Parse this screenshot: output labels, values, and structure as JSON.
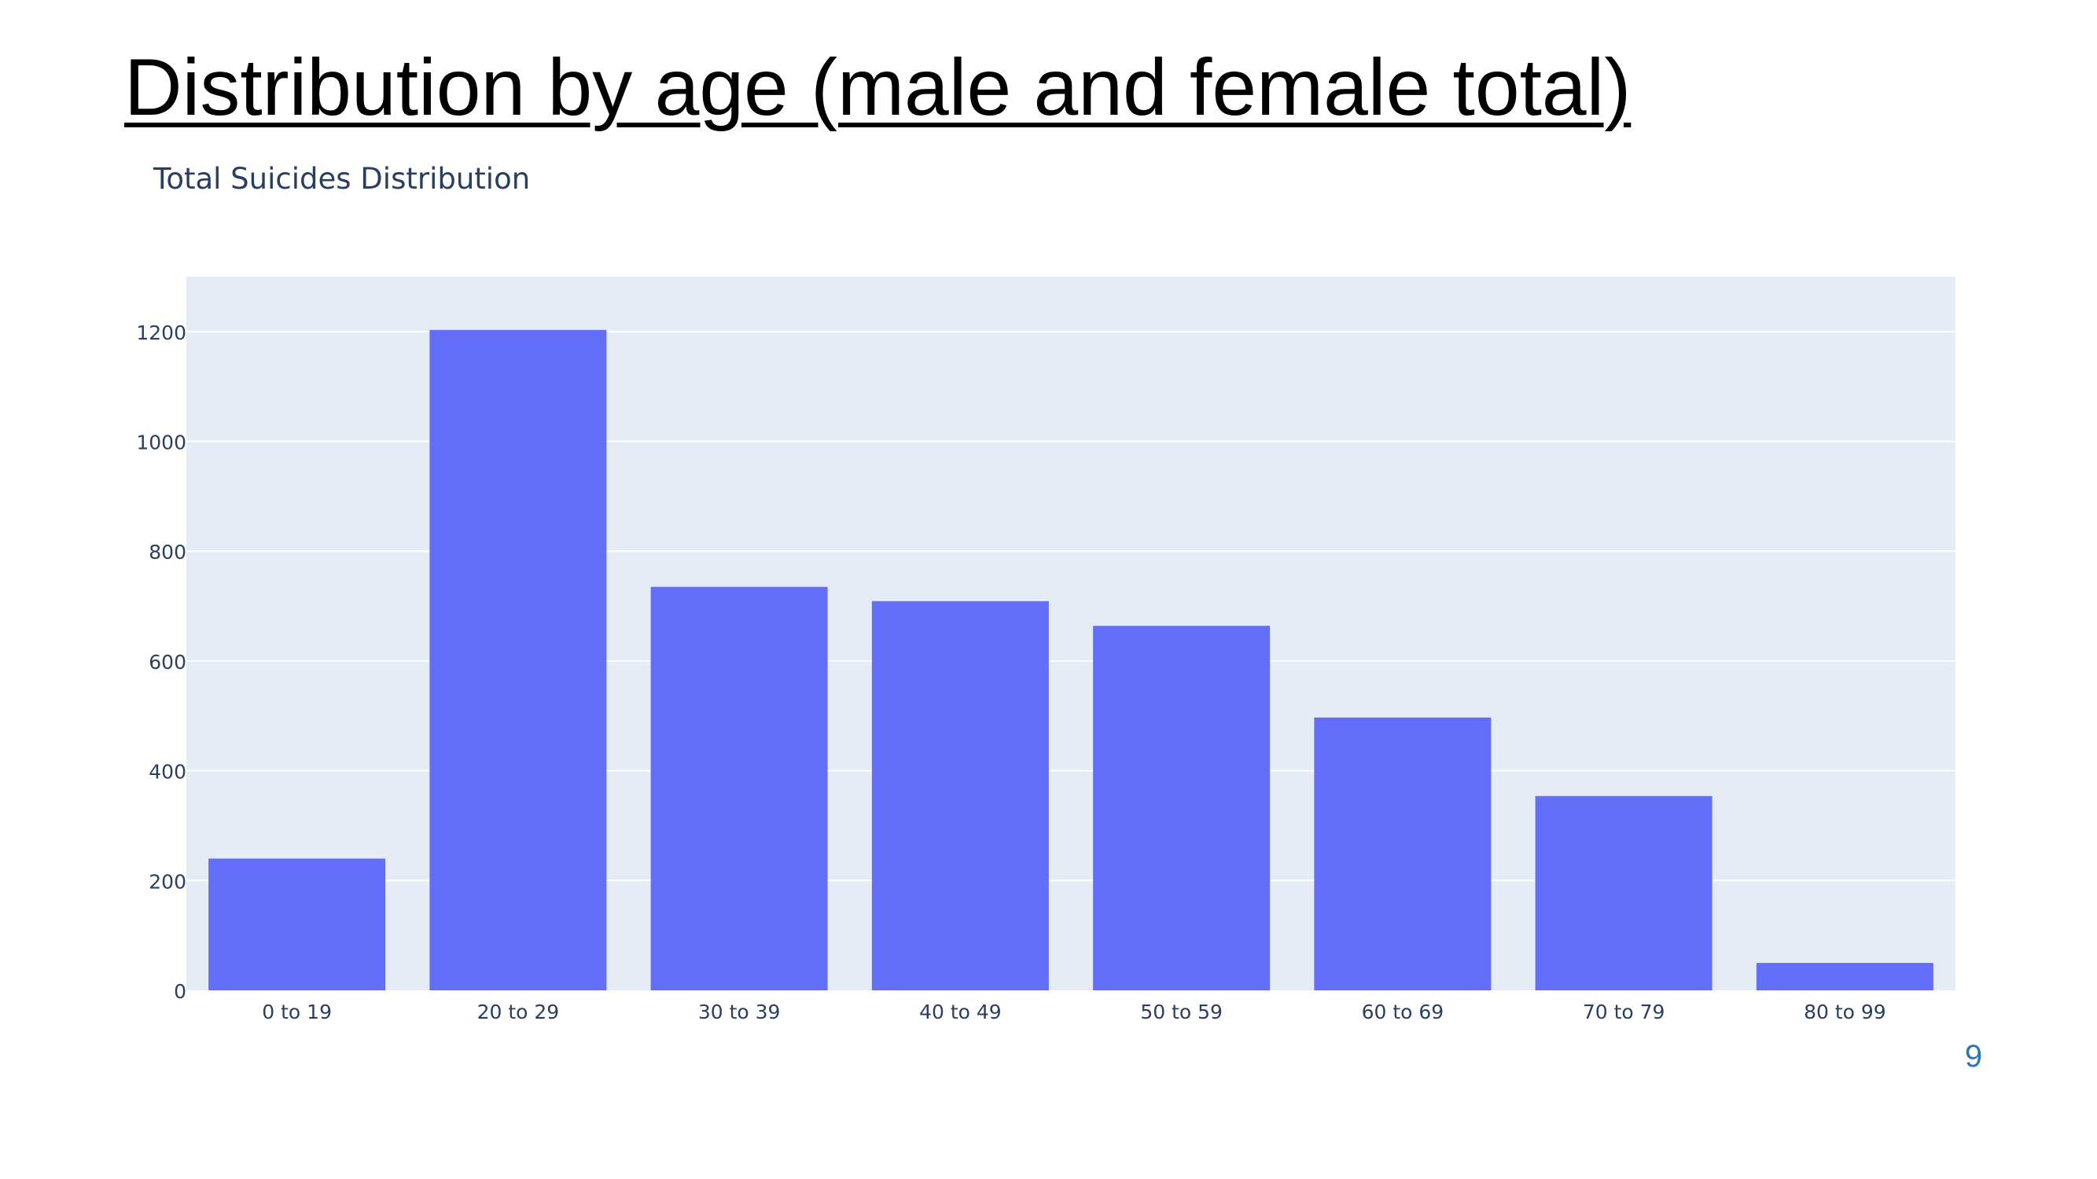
{
  "slide": {
    "title": "Distribution by age (male and female total)",
    "page_number": "9"
  },
  "chart_data": {
    "type": "bar",
    "title": "Total Suicides Distribution",
    "xlabel": "",
    "ylabel": "",
    "categories": [
      "0 to 19",
      "20 to 29",
      "30 to 39",
      "40 to 49",
      "50 to 59",
      "60 to 69",
      "70 to 79",
      "80 to 99"
    ],
    "values": [
      240,
      1203,
      735,
      709,
      664,
      497,
      354,
      50
    ],
    "ylim": [
      0,
      1300
    ],
    "y_ticks": [
      0,
      200,
      400,
      600,
      800,
      1000,
      1200
    ],
    "grid": true,
    "legend": "none",
    "colors": {
      "bar": "#636efa",
      "plot_background": "#e5ecf6",
      "gridline": "#ffffff",
      "tick_text": "#2a3f5f"
    }
  }
}
